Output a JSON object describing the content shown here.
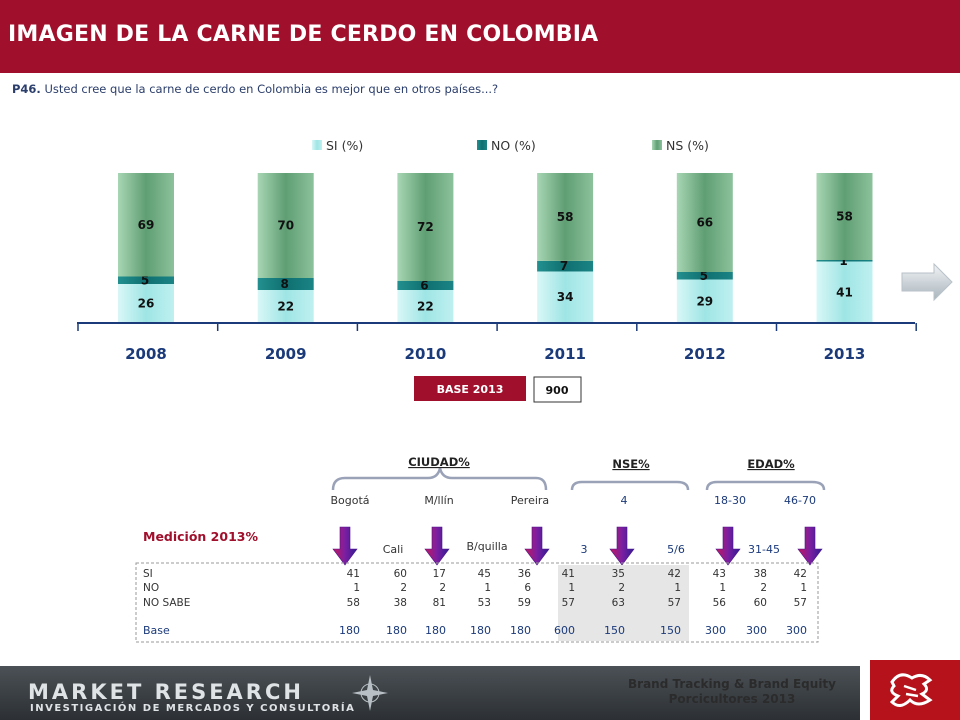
{
  "header": {
    "title": "IMAGEN DE LA CARNE DE CERDO EN COLOMBIA"
  },
  "question": {
    "code": "P46.",
    "text": "Usted cree que la carne de cerdo en Colombia es mejor que en otros países...?"
  },
  "colors": {
    "si": "#aaeaea",
    "no": "#117a7a",
    "ns": "#6aa97e",
    "accent": "#a0102c",
    "year": "#1b3a7a"
  },
  "chart_data": {
    "type": "bar",
    "stacked": true,
    "categories": [
      "2008",
      "2009",
      "2010",
      "2011",
      "2012",
      "2013"
    ],
    "series": [
      {
        "name": "SI (%)",
        "values": [
          26,
          22,
          22,
          34,
          29,
          41
        ]
      },
      {
        "name": "NO (%)",
        "values": [
          5,
          8,
          6,
          7,
          5,
          1
        ]
      },
      {
        "name": "NS (%)",
        "values": [
          69,
          70,
          72,
          58,
          66,
          58
        ]
      }
    ],
    "legend_position": "top"
  },
  "base": {
    "label": "BASE 2013",
    "value": "900"
  },
  "groups": {
    "ciudad": "CIUDAD%",
    "nse": "NSE%",
    "edad": "EDAD%"
  },
  "measurement_label": "Medición 2013%",
  "columns": [
    {
      "label": "Bogotá",
      "row": "top"
    },
    {
      "label": "Cali",
      "row": "bottom"
    },
    {
      "label": "M/llín",
      "row": "top"
    },
    {
      "label": "B/quilla",
      "row": "bottom"
    },
    {
      "label": "Pereira",
      "row": "top"
    },
    {
      "label": "3",
      "row": "bottom"
    },
    {
      "label": "4",
      "row": "top"
    },
    {
      "label": "5/6",
      "row": "bottom"
    },
    {
      "label": "18-30",
      "row": "top"
    },
    {
      "label": "31-45",
      "row": "bottom"
    },
    {
      "label": "46-70",
      "row": "top"
    }
  ],
  "table": {
    "rows": [
      {
        "label": "SI",
        "values": [
          "41",
          "60",
          "17",
          "45",
          "36",
          "41",
          "35",
          "42",
          "43",
          "38",
          "42"
        ]
      },
      {
        "label": "NO",
        "values": [
          "1",
          "2",
          "2",
          "1",
          "6",
          "1",
          "2",
          "1",
          "1",
          "2",
          "1"
        ]
      },
      {
        "label": "NO SABE",
        "values": [
          "58",
          "38",
          "81",
          "53",
          "59",
          "57",
          "63",
          "57",
          "56",
          "60",
          "57"
        ]
      }
    ],
    "base": {
      "label": "Base",
      "values": [
        "180",
        "180",
        "180",
        "180",
        "180",
        "600",
        "150",
        "150",
        "300",
        "300",
        "300"
      ]
    }
  },
  "footer": {
    "brand": "MARKET RESEARCH",
    "subtitle": "INVESTIGACIÓN DE MERCADOS Y CONSULTORÍA",
    "project_line1": "Brand Tracking & Brand Equity",
    "project_line2": "Porcicultores 2013"
  }
}
